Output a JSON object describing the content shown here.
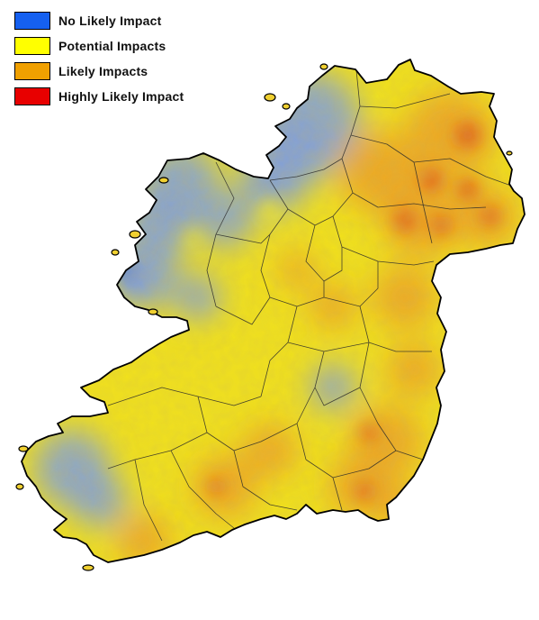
{
  "legend": {
    "items": [
      {
        "label": "No Likely Impact",
        "color": "#1560f0"
      },
      {
        "label": "Potential Impacts",
        "color": "#ffff00"
      },
      {
        "label": "Likely Impacts",
        "color": "#f0a000"
      },
      {
        "label": "Highly Likely Impact",
        "color": "#e80000"
      }
    ]
  },
  "map": {
    "base_color": "#f2e21c",
    "outline_color": "#000000",
    "region_colors": {
      "no_impact": "#7f9fe0",
      "potential": "#f4ea2a",
      "likely": "#eda125",
      "highly_likely": "#df4a1c"
    }
  }
}
